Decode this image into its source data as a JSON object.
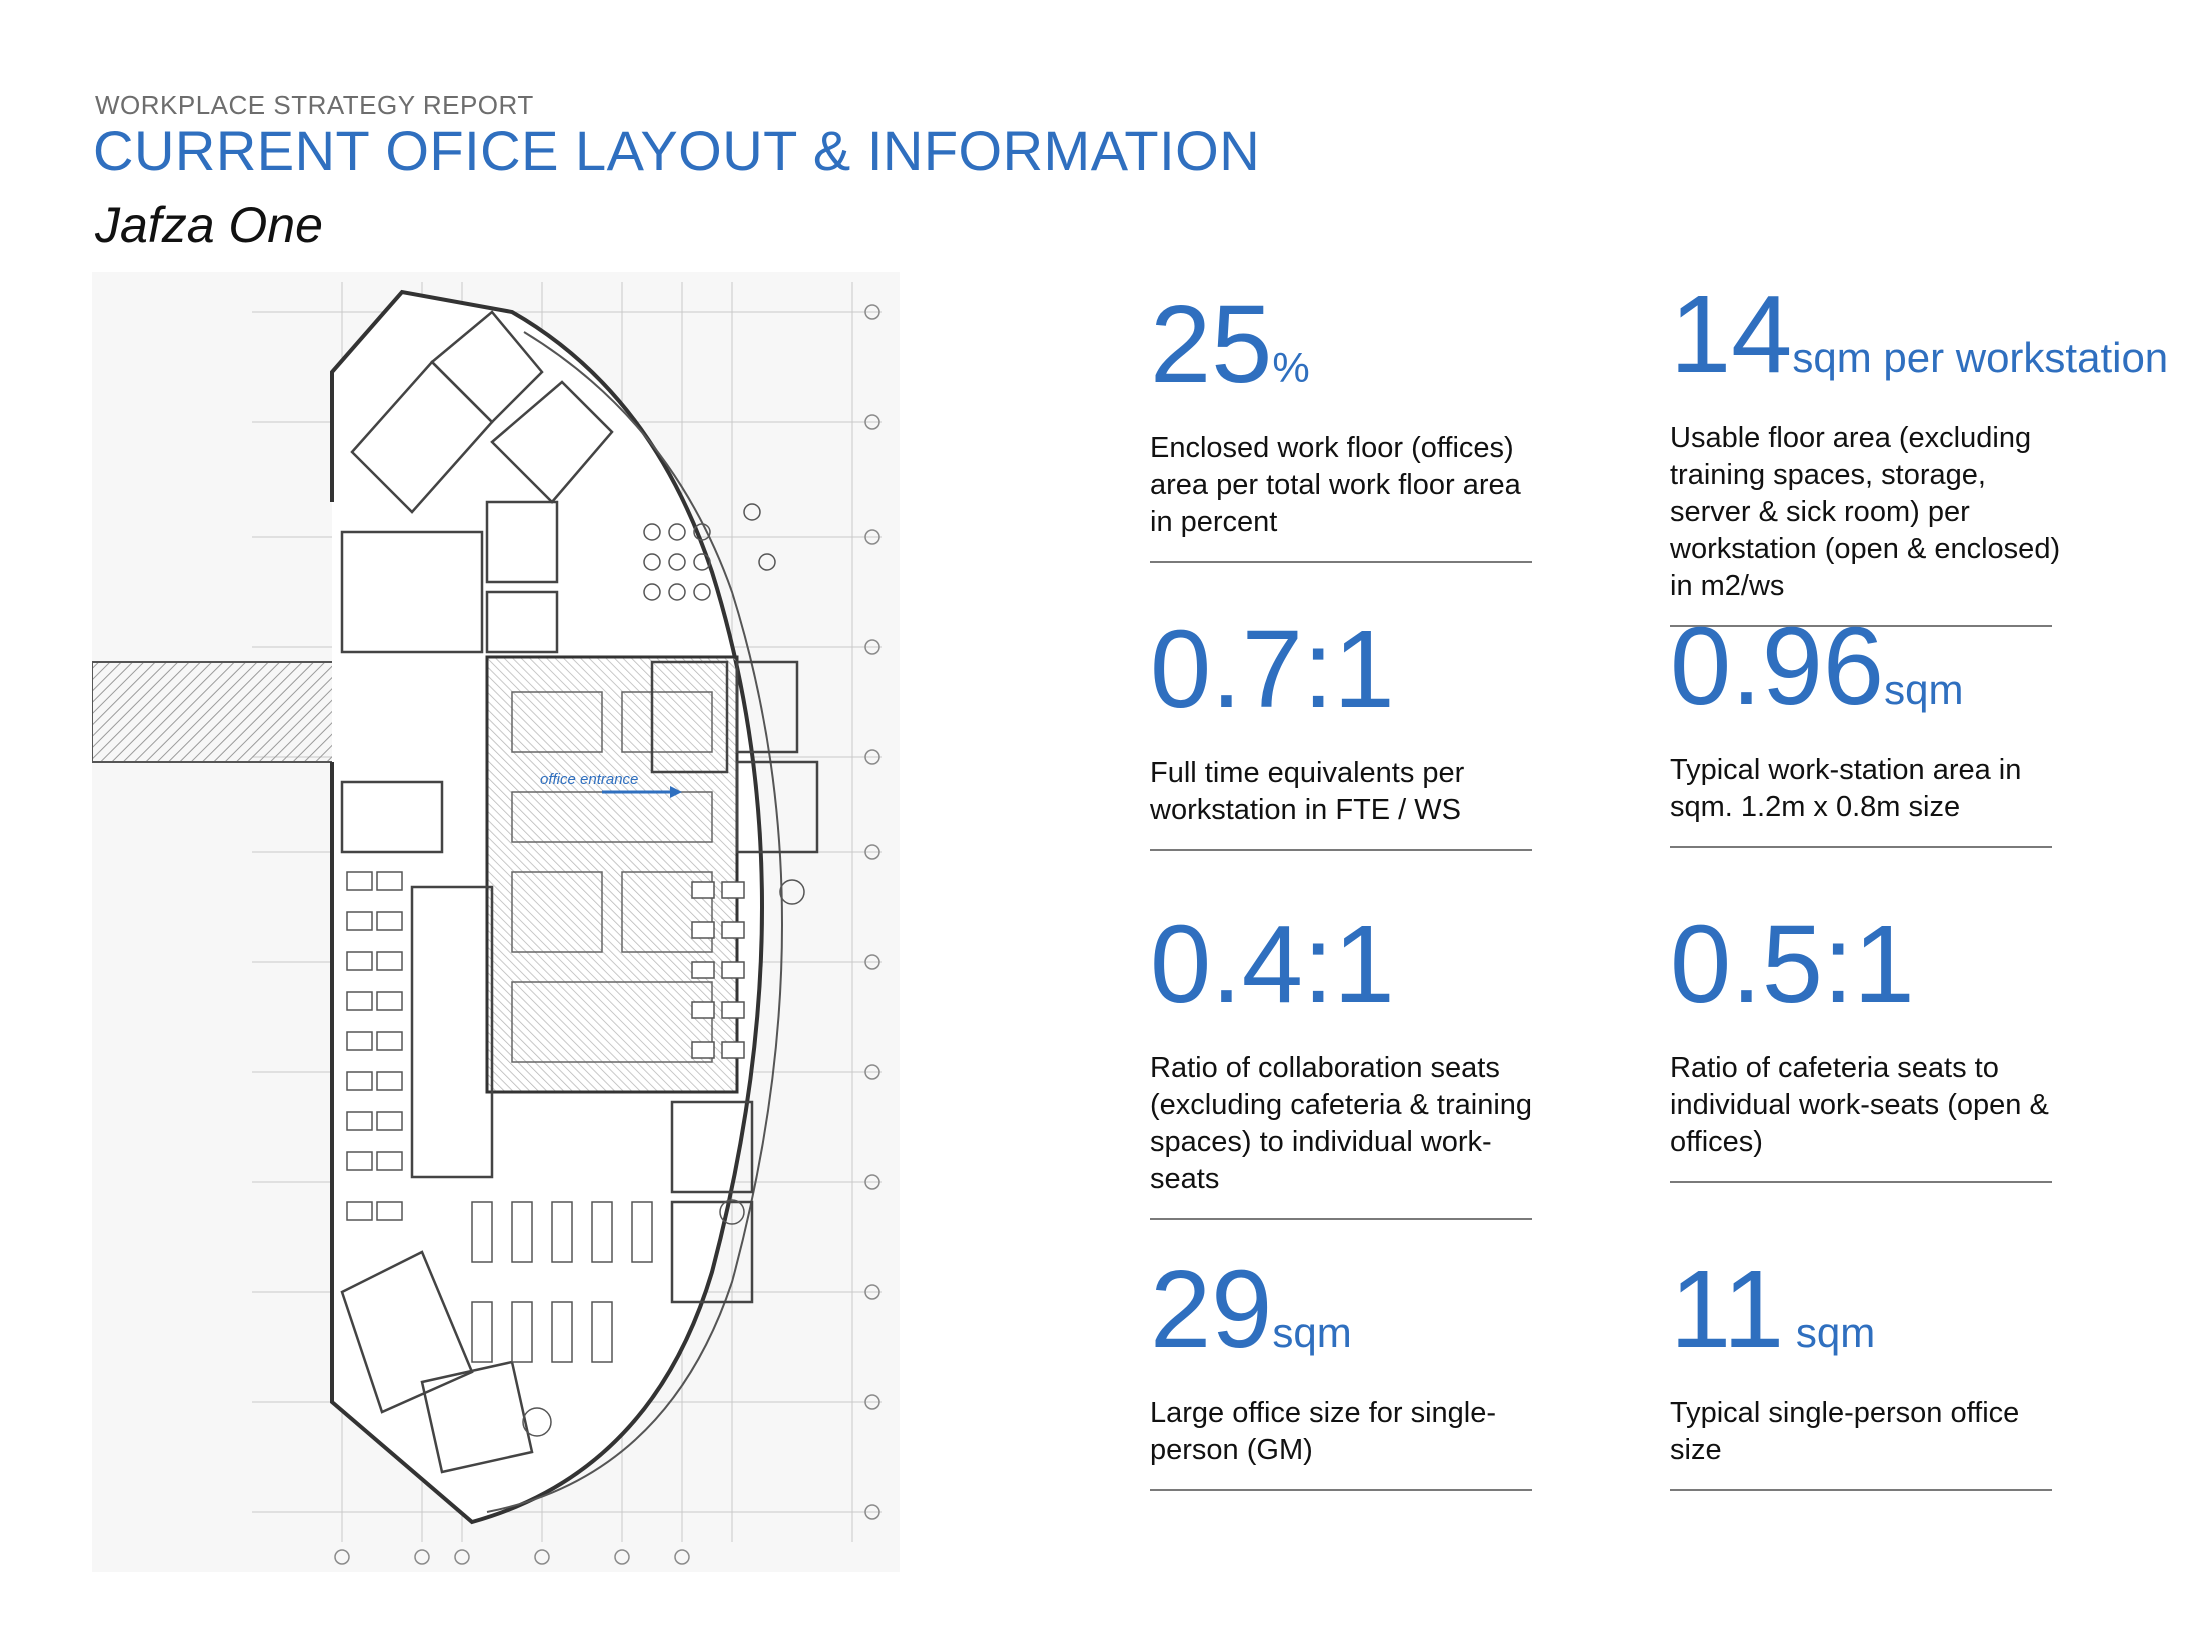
{
  "header": {
    "kicker": "WORKPLACE STRATEGY REPORT",
    "title": "CURRENT OFICE LAYOUT & INFORMATION",
    "subtitle": "Jafza One"
  },
  "plan": {
    "entrance_label": "office entrance",
    "accent_color": "#2f6fbf"
  },
  "stats": [
    {
      "value": "25",
      "unit": "%",
      "desc": "Enclosed work floor (offices) area per total work floor area in percent"
    },
    {
      "value": "14",
      "unit": "sqm per workstation",
      "desc": "Usable floor area (excluding training spaces, storage, server & sick room) per workstation (open & enclosed) in m2/ws"
    },
    {
      "value": "0.7:1",
      "unit": "",
      "desc": "Full time equivalents per workstation in FTE / WS"
    },
    {
      "value": "0.96",
      "unit": "sqm",
      "desc": "Typical work-station area in sqm. 1.2m x 0.8m size"
    },
    {
      "value": "0.4:1",
      "unit": "",
      "desc": "Ratio of collaboration seats (excluding cafeteria & training spaces) to individual work-seats"
    },
    {
      "value": "0.5:1",
      "unit": "",
      "desc": "Ratio of cafeteria seats to individual work-seats (open & offices)"
    },
    {
      "value": "29",
      "unit": "sqm",
      "desc": "Large office size for single-person (GM)"
    },
    {
      "value": "11",
      "unit": " sqm",
      "desc": "Typical single-person office size"
    }
  ],
  "colors": {
    "accent": "#2f6fbf",
    "text": "#111111",
    "muted": "#6d6d6d"
  }
}
